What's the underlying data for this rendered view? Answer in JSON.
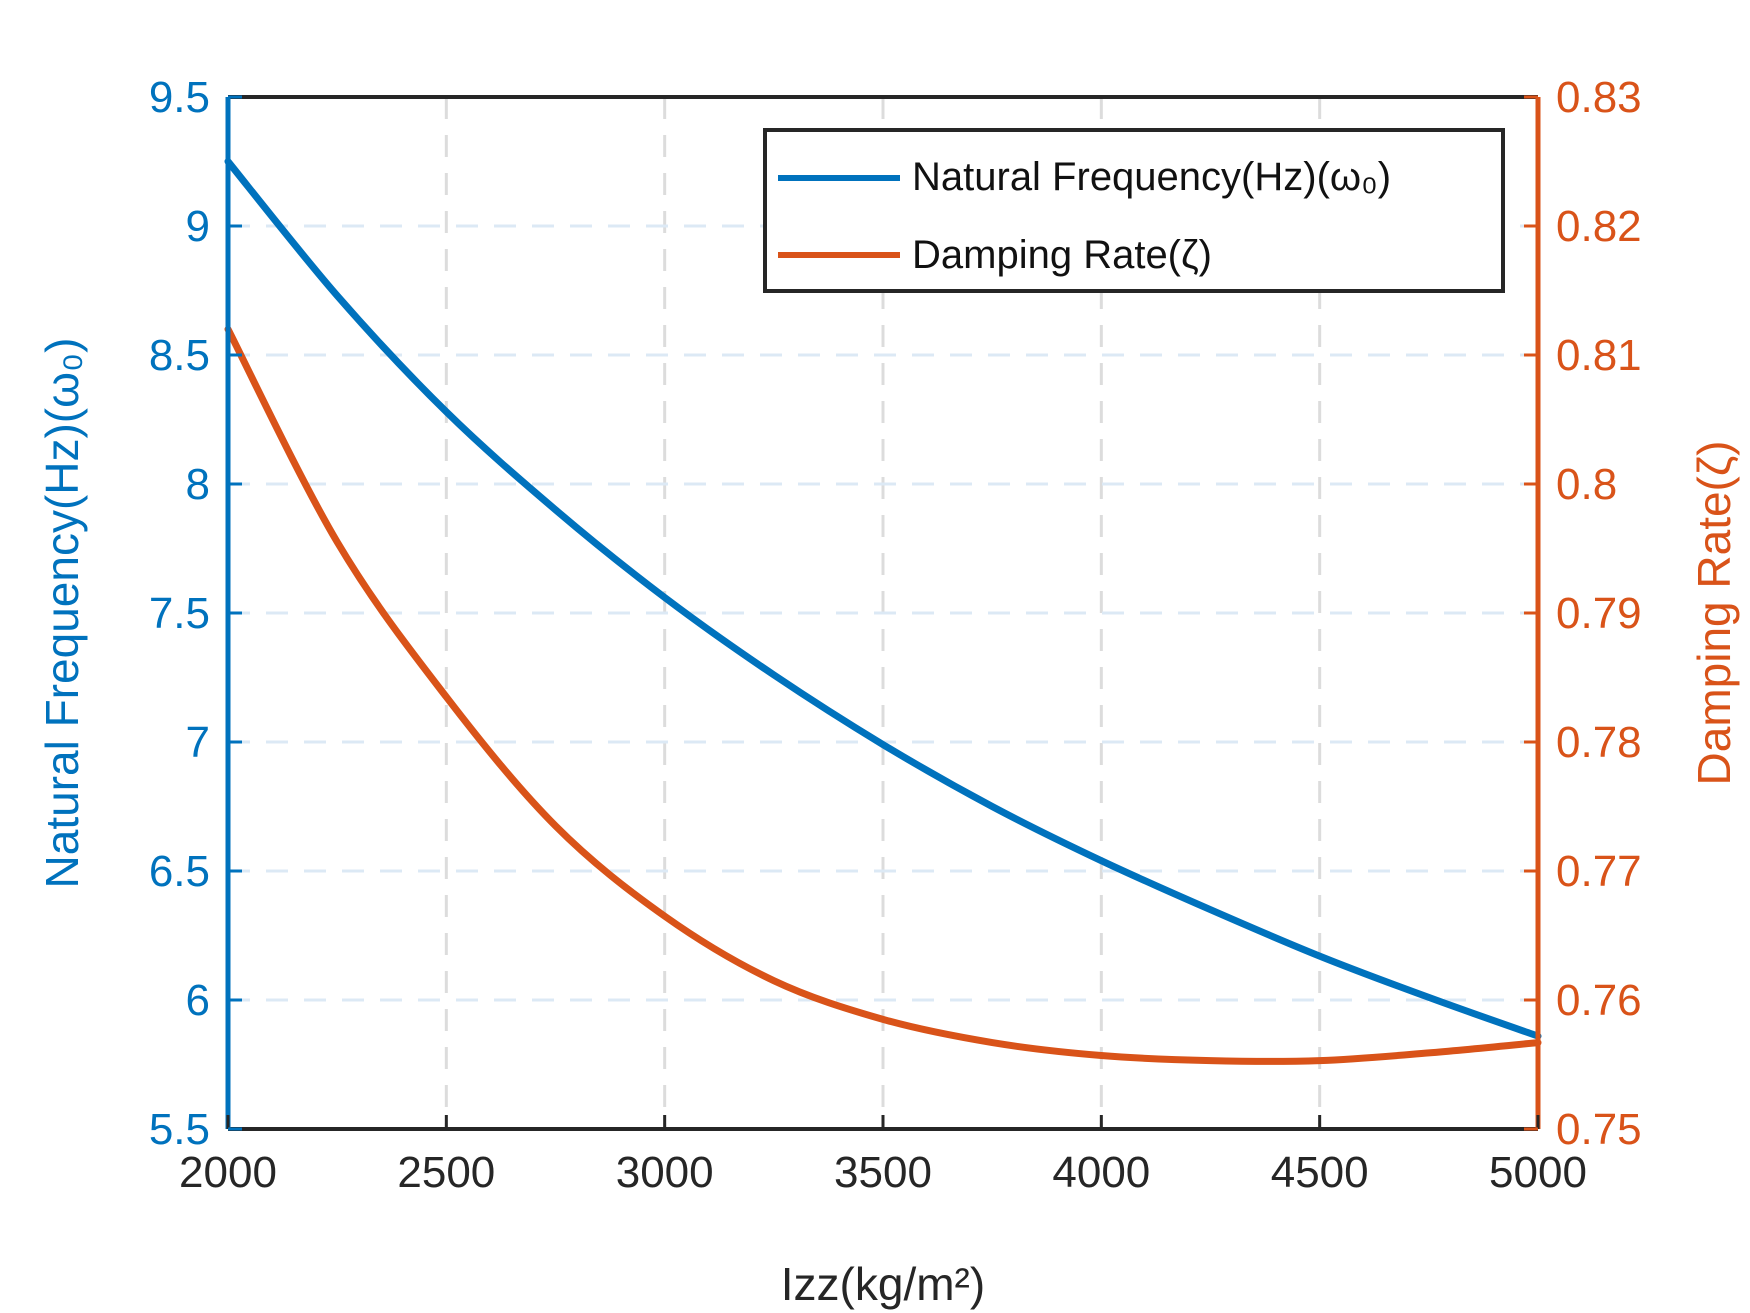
{
  "chart_data": {
    "type": "line",
    "title": "",
    "xlabel": "Izz(kg/m²)",
    "ylabel_left": "Natural Frequency(Hz)(ω₀)",
    "ylabel_right": "Damping Rate(ζ)",
    "xlim": [
      2000,
      5000
    ],
    "ylim_left": [
      5.5,
      9.5
    ],
    "ylim_right": [
      0.75,
      0.83
    ],
    "x_ticks": [
      "2000",
      "2500",
      "3000",
      "3500",
      "4000",
      "4500",
      "5000"
    ],
    "y_ticks_left": [
      "5.5",
      "6",
      "6.5",
      "7",
      "7.5",
      "8",
      "8.5",
      "9",
      "9.5"
    ],
    "y_ticks_right": [
      "0.75",
      "0.76",
      "0.77",
      "0.78",
      "0.79",
      "0.8",
      "0.81",
      "0.82",
      "0.83"
    ],
    "grid": true,
    "legend_position": "top-right",
    "colors": {
      "left_axis": "#0072BD",
      "right_axis": "#D95319",
      "frame": "#262626",
      "grid": "#dcdcdc"
    },
    "series": [
      {
        "name": "Natural Frequency(Hz)(ω₀)",
        "axis": "left",
        "color": "#0072BD",
        "x": [
          2000,
          2250,
          2500,
          2750,
          3000,
          3250,
          3500,
          3750,
          4000,
          4250,
          4500,
          4750,
          5000
        ],
        "values": [
          9.25,
          8.73,
          8.28,
          7.9,
          7.56,
          7.26,
          6.99,
          6.75,
          6.54,
          6.35,
          6.17,
          6.01,
          5.86
        ]
      },
      {
        "name": "Damping Rate(ζ)",
        "axis": "right",
        "color": "#D95319",
        "x": [
          2000,
          2250,
          2500,
          2750,
          3000,
          3250,
          3500,
          3750,
          4000,
          4250,
          4500,
          4750,
          5000
        ],
        "values": [
          0.812,
          0.7955,
          0.7835,
          0.7735,
          0.7665,
          0.7615,
          0.7585,
          0.7567,
          0.7557,
          0.7553,
          0.7553,
          0.7559,
          0.7567
        ]
      }
    ]
  }
}
